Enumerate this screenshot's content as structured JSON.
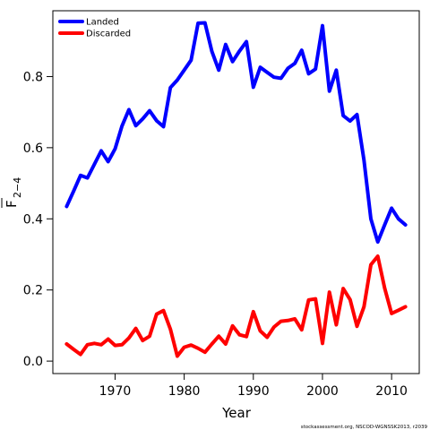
{
  "chart_data": {
    "type": "line",
    "xlabel": "Year",
    "ylabel_main": "F",
    "ylabel_sub": "2−4",
    "xlim": [
      1961,
      2014
    ],
    "ylim": [
      -0.035,
      0.985
    ],
    "x_ticks": [
      1970,
      1980,
      1990,
      2000,
      2010
    ],
    "y_ticks": [
      0.0,
      0.2,
      0.4,
      0.6,
      0.8
    ],
    "y_tick_labels": [
      "0.0",
      "0.2",
      "0.4",
      "0.6",
      "0.8"
    ],
    "grid": false,
    "legend_position": "top-left",
    "series": [
      {
        "name": "Landed",
        "color": "#0000ff",
        "x": [
          1963,
          1964,
          1965,
          1966,
          1967,
          1968,
          1969,
          1970,
          1971,
          1972,
          1973,
          1974,
          1975,
          1976,
          1977,
          1978,
          1979,
          1980,
          1981,
          1982,
          1983,
          1984,
          1985,
          1986,
          1987,
          1988,
          1989,
          1990,
          1991,
          1992,
          1993,
          1994,
          1995,
          1996,
          1997,
          1998,
          1999,
          2000,
          2001,
          2002,
          2003,
          2004,
          2005,
          2006,
          2007,
          2008,
          2009,
          2010,
          2011,
          2012
        ],
        "y": [
          0.435,
          0.478,
          0.522,
          0.515,
          0.553,
          0.591,
          0.561,
          0.597,
          0.661,
          0.707,
          0.662,
          0.681,
          0.704,
          0.676,
          0.659,
          0.769,
          0.79,
          0.818,
          0.846,
          0.95,
          0.951,
          0.871,
          0.818,
          0.89,
          0.842,
          0.872,
          0.898,
          0.77,
          0.826,
          0.812,
          0.798,
          0.795,
          0.823,
          0.837,
          0.874,
          0.808,
          0.821,
          0.943,
          0.759,
          0.818,
          0.69,
          0.675,
          0.693,
          0.565,
          0.4,
          0.335,
          0.383,
          0.43,
          0.4,
          0.383
        ]
      },
      {
        "name": "Discarded",
        "color": "#ff0000",
        "x": [
          1963,
          1964,
          1965,
          1966,
          1967,
          1968,
          1969,
          1970,
          1971,
          1972,
          1973,
          1974,
          1975,
          1976,
          1977,
          1978,
          1979,
          1980,
          1981,
          1982,
          1983,
          1984,
          1985,
          1986,
          1987,
          1988,
          1989,
          1990,
          1991,
          1992,
          1993,
          1994,
          1995,
          1996,
          1997,
          1998,
          1999,
          2000,
          2001,
          2002,
          2003,
          2004,
          2005,
          2006,
          2007,
          2008,
          2009,
          2010,
          2011,
          2012
        ],
        "y": [
          0.048,
          0.033,
          0.019,
          0.046,
          0.05,
          0.046,
          0.062,
          0.044,
          0.046,
          0.065,
          0.092,
          0.058,
          0.07,
          0.132,
          0.142,
          0.09,
          0.014,
          0.039,
          0.045,
          0.036,
          0.025,
          0.048,
          0.07,
          0.048,
          0.099,
          0.074,
          0.069,
          0.139,
          0.085,
          0.067,
          0.096,
          0.112,
          0.114,
          0.119,
          0.088,
          0.172,
          0.175,
          0.05,
          0.194,
          0.102,
          0.204,
          0.173,
          0.098,
          0.153,
          0.271,
          0.295,
          0.205,
          0.134,
          0.143,
          0.153
        ]
      }
    ]
  },
  "credit": "stockassessment.org, NSCOD-WGNSSK2013, r2039"
}
